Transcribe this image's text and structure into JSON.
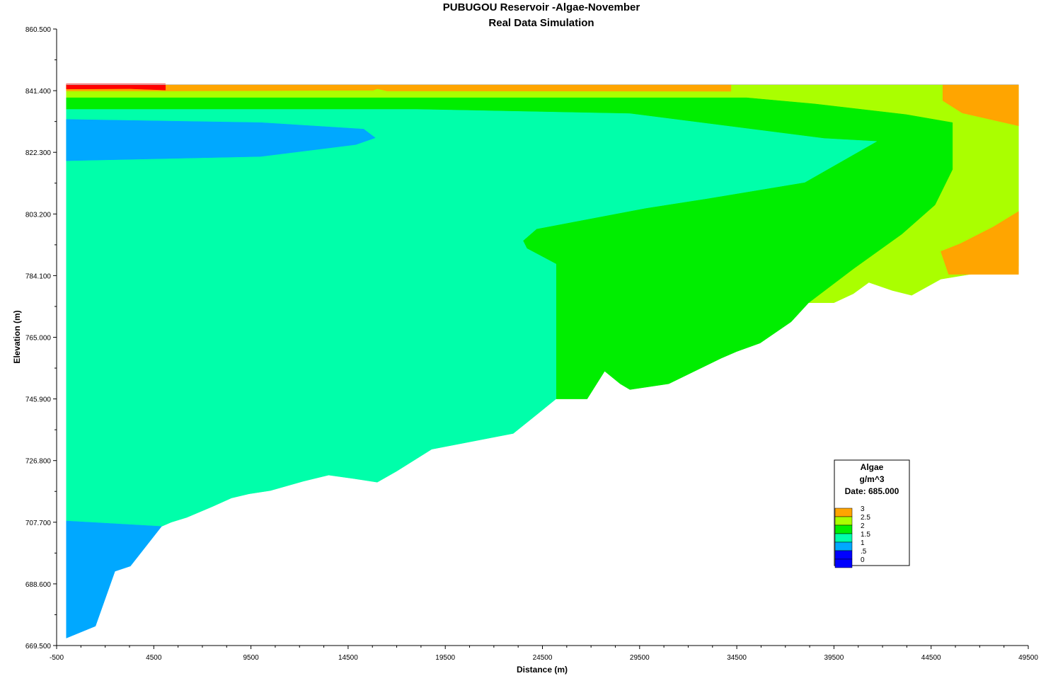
{
  "chart_data": {
    "type": "heatmap",
    "title": "PUBUGOU Reservoir -Algae-November",
    "subtitle": "Real Data Simulation",
    "xlabel": "Distance (m)",
    "ylabel": "Elevation (m)",
    "xlim": [
      -500,
      49500
    ],
    "ylim": [
      669.5,
      860.5
    ],
    "x_ticks": [
      "-500",
      "4500",
      "9500",
      "14500",
      "19500",
      "24500",
      "29500",
      "34500",
      "39500",
      "44500",
      "49500"
    ],
    "y_ticks": [
      "669.500",
      "688.600",
      "707.700",
      "726.800",
      "745.900",
      "765.000",
      "784.100",
      "803.200",
      "822.300",
      "841.400",
      "860.500"
    ],
    "legend": {
      "title": "Algae",
      "unit": "g/m^3",
      "date_label": "Date: 685.000",
      "levels": [
        {
          "label": "3",
          "color": "#ffa500"
        },
        {
          "label": "2.5",
          "color": "#aaff00"
        },
        {
          "label": "2",
          "color": "#00ee00"
        },
        {
          "label": "1.5",
          "color": "#00ffaa"
        },
        {
          "label": "1",
          "color": "#00a8ff"
        },
        {
          "label": ".5",
          "color": "#0000ff"
        },
        {
          "label": "0",
          "color": "#0000ff"
        }
      ]
    },
    "regions": [
      {
        "level": "2.5",
        "color": "#aaff00",
        "points": [
          [
            0,
            843.2
          ],
          [
            49000,
            843.2
          ],
          [
            49000,
            787
          ],
          [
            45000,
            783
          ],
          [
            43500,
            778
          ],
          [
            42500,
            779.5
          ],
          [
            41300,
            782
          ],
          [
            40500,
            778.5
          ],
          [
            39500,
            775.7
          ],
          [
            38200,
            775.7
          ],
          [
            40500,
            786.2
          ],
          [
            43000,
            797
          ],
          [
            44700,
            806
          ],
          [
            45600,
            817
          ],
          [
            45600,
            831.5
          ],
          [
            43200,
            834
          ],
          [
            38500,
            837.3
          ],
          [
            35000,
            839.2
          ],
          [
            0,
            839.2
          ]
        ]
      },
      {
        "level": "2",
        "color": "#00ee00",
        "points": [
          [
            0,
            839.2
          ],
          [
            35000,
            839.2
          ],
          [
            38500,
            837.3
          ],
          [
            43200,
            834
          ],
          [
            45600,
            831.5
          ],
          [
            45600,
            817
          ],
          [
            44700,
            806
          ],
          [
            43000,
            797
          ],
          [
            40500,
            786.2
          ],
          [
            38200,
            775.7
          ],
          [
            37300,
            769.8
          ],
          [
            35700,
            763.2
          ],
          [
            34500,
            760.6
          ],
          [
            33700,
            758.5
          ],
          [
            31000,
            750.6
          ],
          [
            29000,
            748.8
          ],
          [
            28500,
            750.6
          ],
          [
            27700,
            754.5
          ],
          [
            26800,
            745.9
          ],
          [
            25200,
            745.9
          ],
          [
            25200,
            787.7
          ],
          [
            23700,
            792.5
          ],
          [
            23500,
            794.9
          ],
          [
            24200,
            798.6
          ],
          [
            29800,
            805
          ],
          [
            33000,
            808
          ],
          [
            38000,
            813
          ],
          [
            41700,
            825.7
          ],
          [
            39000,
            826.6
          ],
          [
            29000,
            834.3
          ],
          [
            18000,
            835.6
          ],
          [
            0,
            835.6
          ]
        ]
      },
      {
        "level": "1.5",
        "color": "#00ffaa",
        "points": [
          [
            0,
            835.6
          ],
          [
            18000,
            835.6
          ],
          [
            29000,
            834.3
          ],
          [
            39000,
            826.6
          ],
          [
            41700,
            825.7
          ],
          [
            38000,
            813
          ],
          [
            33000,
            808
          ],
          [
            29800,
            805
          ],
          [
            24200,
            798.6
          ],
          [
            23500,
            794.9
          ],
          [
            23700,
            792.5
          ],
          [
            25200,
            787.7
          ],
          [
            25200,
            745.9
          ],
          [
            24300,
            741.5
          ],
          [
            23000,
            735.2
          ],
          [
            18800,
            730.3
          ],
          [
            17000,
            723.5
          ],
          [
            16000,
            720.1
          ],
          [
            14800,
            721.2
          ],
          [
            13500,
            722.3
          ],
          [
            12200,
            720.4
          ],
          [
            10500,
            717.5
          ],
          [
            9400,
            716.5
          ],
          [
            8500,
            715.2
          ],
          [
            7500,
            712.5
          ],
          [
            6200,
            709.2
          ],
          [
            5400,
            707.7
          ],
          [
            4900,
            706.4
          ],
          [
            0,
            708.1
          ]
        ]
      },
      {
        "level": "1",
        "color": "#00a8ff",
        "points": [
          [
            0,
            708.1
          ],
          [
            4900,
            706.4
          ],
          [
            3300,
            694.1
          ],
          [
            2500,
            692.5
          ],
          [
            1500,
            675.5
          ],
          [
            0,
            671.8
          ]
        ]
      },
      {
        "level": "1",
        "color": "#00a8ff",
        "points": [
          [
            0,
            832.5
          ],
          [
            10000,
            831.5
          ],
          [
            15300,
            829.5
          ],
          [
            15900,
            826.8
          ],
          [
            14900,
            824.7
          ],
          [
            10000,
            821
          ],
          [
            0,
            819.7
          ]
        ]
      },
      {
        "level": "3",
        "color": "#ffa500",
        "points": [
          [
            5100,
            843.2
          ],
          [
            34200,
            843.2
          ],
          [
            34200,
            841.2
          ],
          [
            20000,
            841.3
          ],
          [
            16500,
            841.3
          ],
          [
            16000,
            842
          ],
          [
            15800,
            841.5
          ],
          [
            5100,
            841.3
          ]
        ]
      },
      {
        "level": "3",
        "color": "#ffa500",
        "points": [
          [
            45100,
            843.2
          ],
          [
            49000,
            843.2
          ],
          [
            49000,
            830.5
          ],
          [
            46100,
            834.5
          ],
          [
            45100,
            838.3
          ]
        ]
      },
      {
        "level": "3",
        "color": "#ffa500",
        "points": [
          [
            49000,
            804
          ],
          [
            49000,
            784.5
          ],
          [
            45400,
            784.5
          ],
          [
            45000,
            791.6
          ],
          [
            46000,
            794
          ],
          [
            47700,
            799.2
          ]
        ]
      },
      {
        "level": "3",
        "color": "#ffa500",
        "points": [
          [
            0,
            843.2
          ],
          [
            5100,
            843.2
          ],
          [
            5100,
            841.3
          ],
          [
            0,
            841.3
          ]
        ]
      },
      {
        "level": "3.5",
        "color": "#ff0000",
        "points": [
          [
            0,
            843.5
          ],
          [
            5100,
            843.5
          ],
          [
            5100,
            841.6
          ],
          [
            3300,
            842
          ],
          [
            0,
            841.9
          ]
        ]
      }
    ],
    "grid": false
  }
}
